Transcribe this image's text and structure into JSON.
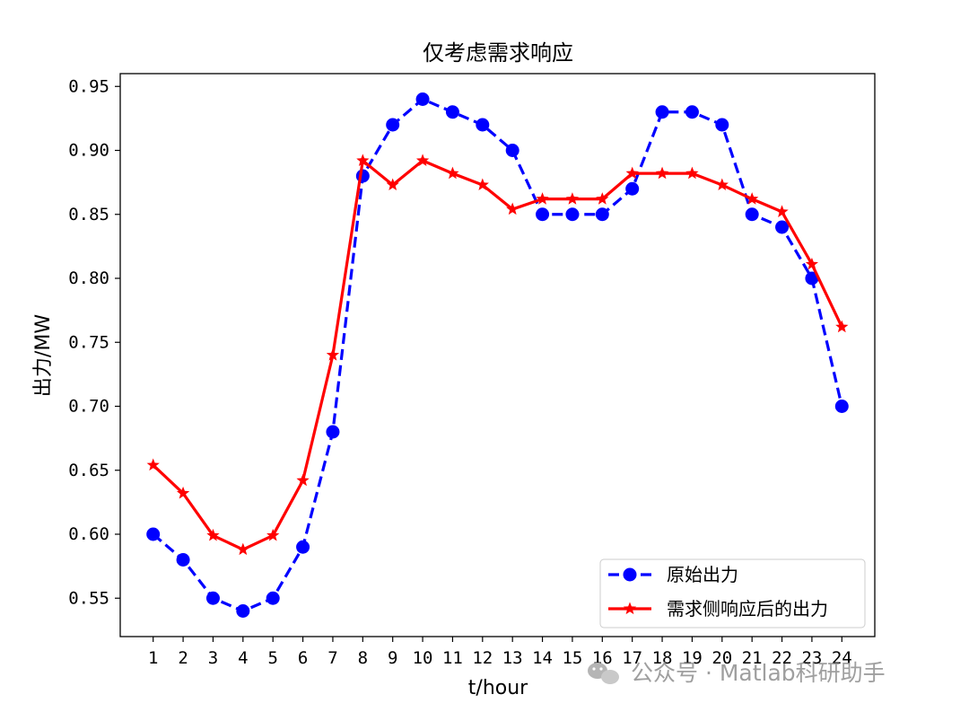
{
  "chart_data": {
    "type": "line",
    "title": "仅考虑需求响应",
    "xlabel": "t/hour",
    "ylabel": "出力/MW",
    "x": [
      1,
      2,
      3,
      4,
      5,
      6,
      7,
      8,
      9,
      10,
      11,
      12,
      13,
      14,
      15,
      16,
      17,
      18,
      19,
      20,
      21,
      22,
      23,
      24
    ],
    "xticks": [
      "1",
      "2",
      "3",
      "4",
      "5",
      "6",
      "7",
      "8",
      "9",
      "10",
      "11",
      "12",
      "13",
      "14",
      "15",
      "16",
      "17",
      "18",
      "19",
      "20",
      "21",
      "22",
      "23",
      "24"
    ],
    "yticks": [
      0.55,
      0.6,
      0.65,
      0.7,
      0.75,
      0.8,
      0.85,
      0.9,
      0.95
    ],
    "ytick_labels": [
      "0.55",
      "0.60",
      "0.65",
      "0.70",
      "0.75",
      "0.80",
      "0.85",
      "0.90",
      "0.95"
    ],
    "xlim": [
      -0.1,
      25.1
    ],
    "ylim": [
      0.52,
      0.96
    ],
    "grid": false,
    "legend_position": "lower-right",
    "series": [
      {
        "name": "原始出力",
        "color": "#0000ff",
        "linestyle": "dashed",
        "marker": "circle",
        "values": [
          0.6,
          0.58,
          0.55,
          0.54,
          0.55,
          0.59,
          0.68,
          0.88,
          0.92,
          0.94,
          0.93,
          0.92,
          0.9,
          0.85,
          0.85,
          0.85,
          0.87,
          0.93,
          0.93,
          0.92,
          0.85,
          0.84,
          0.8,
          0.7
        ]
      },
      {
        "name": "需求侧响应后的出力",
        "color": "#ff0000",
        "linestyle": "solid",
        "marker": "star",
        "values": [
          0.654,
          0.632,
          0.599,
          0.588,
          0.599,
          0.642,
          0.74,
          0.892,
          0.873,
          0.892,
          0.882,
          0.873,
          0.854,
          0.862,
          0.862,
          0.862,
          0.882,
          0.882,
          0.882,
          0.873,
          0.862,
          0.852,
          0.811,
          0.762
        ]
      }
    ]
  },
  "watermark": {
    "icon": "wechat-icon",
    "text": "公众号 · Matlab科研助手"
  }
}
